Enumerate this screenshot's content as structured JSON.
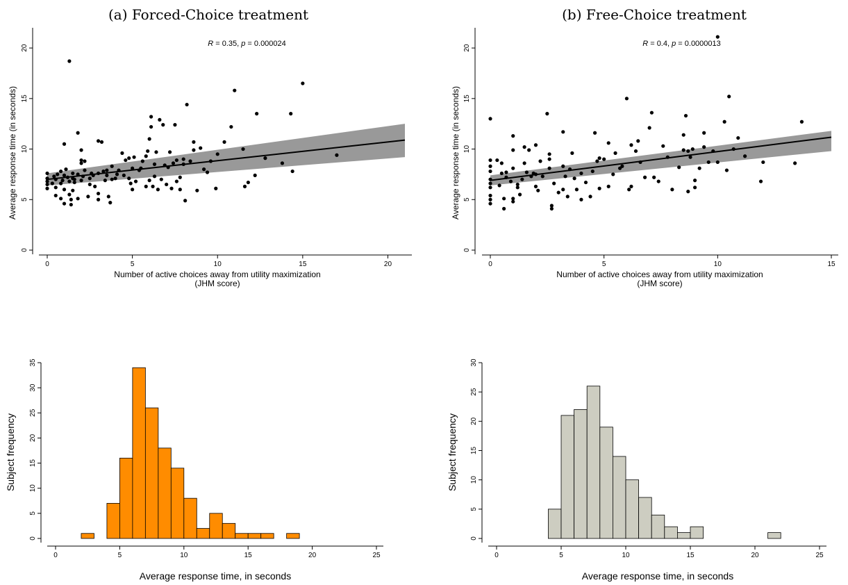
{
  "chart_data": [
    {
      "type": "scatter",
      "title": "(a) Forced-Choice treatment",
      "xlabel": "Number of active choices away from utility maximization",
      "xlabel2": "(JHM score)",
      "ylabel": "Average response time (in seconds)",
      "annotation": {
        "r": "0.35",
        "p": "0.000024"
      },
      "xlim": [
        0,
        21
      ],
      "ylim": [
        0,
        22
      ],
      "xticks": [
        0,
        5,
        10,
        15,
        20
      ],
      "yticks": [
        0,
        5,
        10,
        15,
        20
      ],
      "fit": {
        "intercept": 7.0,
        "slope": 0.185,
        "ci_at_xmin": [
          6.4,
          7.6
        ],
        "ci_at_xmax": [
          9.2,
          12.5
        ]
      },
      "points": [
        [
          0,
          7.6
        ],
        [
          0,
          7.1
        ],
        [
          0,
          6.8
        ],
        [
          0,
          6.5
        ],
        [
          0,
          6.1
        ],
        [
          0.4,
          7.3
        ],
        [
          0.5,
          5.4
        ],
        [
          0.5,
          6.2
        ],
        [
          0.5,
          7.0
        ],
        [
          0.6,
          7.5
        ],
        [
          0.8,
          7.8
        ],
        [
          0.8,
          6.6
        ],
        [
          0.8,
          5.1
        ],
        [
          0.9,
          6.9
        ],
        [
          1.0,
          10.5
        ],
        [
          1.0,
          7.4
        ],
        [
          1.0,
          6.0
        ],
        [
          1.0,
          4.6
        ],
        [
          1.1,
          8.0
        ],
        [
          1.2,
          7.2
        ],
        [
          1.3,
          18.7
        ],
        [
          1.3,
          6.8
        ],
        [
          1.3,
          5.5
        ],
        [
          1.4,
          5.0
        ],
        [
          1.4,
          4.5
        ],
        [
          1.5,
          7.6
        ],
        [
          1.5,
          7.1
        ],
        [
          1.5,
          5.9
        ],
        [
          1.6,
          6.7
        ],
        [
          1.8,
          7.5
        ],
        [
          1.8,
          5.1
        ],
        [
          1.8,
          11.6
        ],
        [
          2.0,
          9.9
        ],
        [
          2.0,
          8.9
        ],
        [
          2.0,
          8.6
        ],
        [
          2.0,
          6.9
        ],
        [
          2.1,
          7.3
        ],
        [
          2.2,
          8.8
        ],
        [
          2.4,
          5.3
        ],
        [
          2.5,
          7.1
        ],
        [
          2.5,
          6.5
        ],
        [
          2.6,
          7.6
        ],
        [
          2.8,
          6.3
        ],
        [
          3.0,
          10.8
        ],
        [
          3.0,
          7.6
        ],
        [
          3.0,
          5.6
        ],
        [
          3.0,
          5.0
        ],
        [
          3.2,
          10.7
        ],
        [
          3.3,
          7.8
        ],
        [
          3.4,
          6.9
        ],
        [
          3.5,
          7.4
        ],
        [
          3.6,
          5.3
        ],
        [
          3.7,
          4.7
        ],
        [
          3.8,
          8.3
        ],
        [
          4.0,
          7.1
        ],
        [
          4.2,
          7.9
        ],
        [
          4.4,
          9.6
        ],
        [
          4.6,
          8.9
        ],
        [
          4.8,
          9.1
        ],
        [
          4.8,
          7.1
        ],
        [
          4.9,
          6.6
        ],
        [
          5.0,
          6.0
        ],
        [
          5.0,
          8.1
        ],
        [
          5.2,
          6.8
        ],
        [
          5.4,
          7.9
        ],
        [
          5.6,
          8.8
        ],
        [
          5.8,
          6.3
        ],
        [
          5.8,
          9.3
        ],
        [
          5.9,
          9.8
        ],
        [
          6.0,
          11.0
        ],
        [
          6.0,
          6.9
        ],
        [
          6.1,
          12.2
        ],
        [
          6.1,
          13.2
        ],
        [
          6.2,
          6.3
        ],
        [
          6.3,
          7.3
        ],
        [
          6.4,
          9.7
        ],
        [
          6.5,
          6.0
        ],
        [
          6.6,
          12.9
        ],
        [
          6.7,
          7.0
        ],
        [
          6.8,
          12.4
        ],
        [
          7.0,
          6.5
        ],
        [
          7.1,
          8.2
        ],
        [
          7.2,
          9.7
        ],
        [
          7.3,
          6.1
        ],
        [
          7.4,
          8.6
        ],
        [
          7.5,
          12.4
        ],
        [
          7.6,
          8.9
        ],
        [
          7.8,
          6.0
        ],
        [
          8.0,
          8.5
        ],
        [
          8.0,
          9.0
        ],
        [
          8.1,
          4.9
        ],
        [
          8.2,
          14.4
        ],
        [
          8.6,
          9.9
        ],
        [
          8.6,
          10.7
        ],
        [
          8.8,
          5.9
        ],
        [
          9.0,
          10.1
        ],
        [
          9.2,
          8.0
        ],
        [
          9.6,
          8.8
        ],
        [
          9.9,
          6.1
        ],
        [
          10.0,
          9.5
        ],
        [
          10.4,
          10.7
        ],
        [
          10.8,
          12.2
        ],
        [
          11.0,
          15.8
        ],
        [
          11.5,
          10.0
        ],
        [
          11.6,
          6.3
        ],
        [
          11.8,
          6.7
        ],
        [
          12.2,
          7.4
        ],
        [
          12.3,
          13.5
        ],
        [
          12.8,
          9.1
        ],
        [
          13.8,
          8.6
        ],
        [
          14.3,
          13.5
        ],
        [
          14.4,
          7.8
        ],
        [
          15.0,
          16.5
        ],
        [
          17.0,
          9.4
        ],
        [
          3.5,
          7.9
        ],
        [
          0.3,
          6.6
        ],
        [
          1.6,
          7.0
        ],
        [
          2.7,
          7.4
        ],
        [
          4.1,
          7.5
        ],
        [
          5.5,
          8.1
        ],
        [
          6.9,
          8.4
        ],
        [
          7.8,
          7.2
        ],
        [
          8.4,
          8.8
        ],
        [
          9.4,
          7.7
        ],
        [
          4.5,
          7.4
        ],
        [
          5.1,
          9.2
        ],
        [
          3.8,
          7.0
        ],
        [
          6.3,
          8.5
        ],
        [
          7.6,
          6.8
        ],
        [
          2.2,
          7.9
        ]
      ]
    },
    {
      "type": "scatter",
      "title": "(b) Free-Choice treatment",
      "xlabel": "Number of active choices away from utility maximization",
      "xlabel2": "(JHM score)",
      "ylabel": "Average response time (in seconds)",
      "annotation": {
        "r": "0.4",
        "p": "0.0000013"
      },
      "xlim": [
        0,
        15
      ],
      "ylim": [
        0,
        22
      ],
      "xticks": [
        0,
        5,
        10,
        15
      ],
      "yticks": [
        0,
        5,
        10,
        15,
        20
      ],
      "fit": {
        "intercept": 6.9,
        "slope": 0.285,
        "ci_at_xmin": [
          6.4,
          7.4
        ],
        "ci_at_xmax": [
          9.8,
          11.8
        ]
      },
      "points": [
        [
          0,
          13.0
        ],
        [
          0,
          8.9
        ],
        [
          0,
          8.3
        ],
        [
          0,
          7.8
        ],
        [
          0,
          7.0
        ],
        [
          0,
          6.6
        ],
        [
          0,
          6.2
        ],
        [
          0,
          5.4
        ],
        [
          0,
          5.0
        ],
        [
          0,
          4.6
        ],
        [
          0.3,
          8.9
        ],
        [
          0.4,
          6.4
        ],
        [
          0.5,
          7.6
        ],
        [
          0.5,
          8.6
        ],
        [
          0.6,
          5.1
        ],
        [
          0.6,
          4.1
        ],
        [
          0.7,
          7.2
        ],
        [
          0.9,
          6.8
        ],
        [
          1.0,
          11.3
        ],
        [
          1.0,
          9.9
        ],
        [
          1.0,
          8.1
        ],
        [
          1.0,
          5.1
        ],
        [
          1.0,
          4.8
        ],
        [
          1.2,
          6.5
        ],
        [
          1.3,
          5.5
        ],
        [
          1.5,
          8.6
        ],
        [
          1.5,
          10.2
        ],
        [
          1.6,
          7.7
        ],
        [
          1.7,
          9.9
        ],
        [
          1.8,
          7.3
        ],
        [
          1.9,
          7.6
        ],
        [
          2.0,
          10.4
        ],
        [
          2.0,
          6.3
        ],
        [
          2.1,
          5.9
        ],
        [
          2.2,
          8.8
        ],
        [
          2.3,
          7.3
        ],
        [
          2.5,
          13.5
        ],
        [
          2.6,
          9.5
        ],
        [
          2.6,
          8.1
        ],
        [
          2.7,
          4.4
        ],
        [
          2.7,
          4.1
        ],
        [
          2.8,
          6.6
        ],
        [
          3.0,
          5.7
        ],
        [
          3.2,
          11.7
        ],
        [
          3.2,
          8.3
        ],
        [
          3.2,
          6.0
        ],
        [
          3.3,
          7.3
        ],
        [
          3.4,
          5.3
        ],
        [
          3.6,
          9.6
        ],
        [
          3.7,
          7.1
        ],
        [
          3.8,
          6.0
        ],
        [
          4.0,
          7.6
        ],
        [
          4.0,
          5.0
        ],
        [
          4.2,
          6.7
        ],
        [
          4.4,
          5.3
        ],
        [
          4.6,
          11.6
        ],
        [
          4.7,
          8.8
        ],
        [
          4.8,
          6.1
        ],
        [
          5.0,
          9.0
        ],
        [
          5.2,
          10.6
        ],
        [
          5.2,
          6.3
        ],
        [
          5.4,
          7.5
        ],
        [
          5.5,
          9.6
        ],
        [
          5.7,
          8.1
        ],
        [
          6.0,
          15.0
        ],
        [
          6.1,
          6.0
        ],
        [
          6.2,
          6.3
        ],
        [
          6.4,
          9.8
        ],
        [
          6.5,
          10.8
        ],
        [
          6.8,
          7.2
        ],
        [
          7.0,
          12.1
        ],
        [
          7.1,
          13.6
        ],
        [
          7.2,
          7.2
        ],
        [
          7.4,
          6.8
        ],
        [
          7.6,
          10.3
        ],
        [
          8.0,
          6.0
        ],
        [
          8.3,
          8.2
        ],
        [
          8.5,
          11.4
        ],
        [
          8.6,
          13.3
        ],
        [
          8.7,
          9.8
        ],
        [
          8.7,
          5.8
        ],
        [
          8.8,
          9.2
        ],
        [
          9.0,
          6.2
        ],
        [
          9.0,
          6.9
        ],
        [
          9.2,
          8.1
        ],
        [
          9.4,
          11.6
        ],
        [
          9.6,
          8.7
        ],
        [
          9.8,
          9.8
        ],
        [
          10.0,
          8.7
        ],
        [
          10.0,
          21.1
        ],
        [
          10.3,
          12.7
        ],
        [
          10.5,
          15.2
        ],
        [
          10.7,
          10.0
        ],
        [
          10.9,
          11.1
        ],
        [
          11.2,
          9.3
        ],
        [
          11.9,
          6.8
        ],
        [
          12.0,
          8.7
        ],
        [
          13.4,
          8.6
        ],
        [
          13.7,
          12.7
        ],
        [
          10.4,
          7.9
        ],
        [
          3.5,
          8.0
        ],
        [
          2.0,
          7.5
        ],
        [
          1.4,
          7.0
        ],
        [
          0.7,
          7.7
        ],
        [
          4.5,
          7.8
        ],
        [
          5.8,
          8.3
        ],
        [
          6.6,
          8.7
        ],
        [
          7.8,
          9.2
        ],
        [
          8.5,
          9.9
        ],
        [
          9.4,
          10.2
        ],
        [
          2.6,
          9.0
        ],
        [
          4.8,
          9.1
        ],
        [
          6.2,
          10.4
        ],
        [
          8.9,
          10.0
        ],
        [
          1.2,
          6.2
        ]
      ]
    },
    {
      "type": "bar",
      "title": "",
      "xlabel": "Average response time, in seconds",
      "ylabel": "Subject frequency",
      "color": "#ff8c00",
      "bin_width": 1,
      "bins": [
        [
          2,
          1
        ],
        [
          4,
          7
        ],
        [
          5,
          16
        ],
        [
          6,
          34
        ],
        [
          7,
          26
        ],
        [
          8,
          18
        ],
        [
          9,
          14
        ],
        [
          10,
          8
        ],
        [
          11,
          2
        ],
        [
          12,
          5
        ],
        [
          13,
          3
        ],
        [
          14,
          1
        ],
        [
          15,
          1
        ],
        [
          16,
          1
        ],
        [
          18,
          1
        ]
      ],
      "xlim": [
        0,
        25
      ],
      "ylim": [
        0,
        35
      ],
      "xticks": [
        0,
        5,
        10,
        15,
        20,
        25
      ],
      "yticks": [
        0,
        5,
        10,
        15,
        20,
        25,
        30,
        35
      ]
    },
    {
      "type": "bar",
      "title": "",
      "xlabel": "Average response time, in seconds",
      "ylabel": "Subject frequency",
      "color": "#cdcdc1",
      "bin_width": 1,
      "bins": [
        [
          4,
          5
        ],
        [
          5,
          21
        ],
        [
          6,
          22
        ],
        [
          7,
          26
        ],
        [
          8,
          19
        ],
        [
          9,
          14
        ],
        [
          10,
          10
        ],
        [
          11,
          7
        ],
        [
          12,
          4
        ],
        [
          13,
          2
        ],
        [
          14,
          1
        ],
        [
          15,
          2
        ],
        [
          21,
          1
        ]
      ],
      "xlim": [
        0,
        25
      ],
      "ylim": [
        0,
        30
      ],
      "xticks": [
        0,
        5,
        10,
        15,
        20,
        25
      ],
      "yticks": [
        0,
        5,
        10,
        15,
        20,
        25,
        30
      ]
    }
  ]
}
